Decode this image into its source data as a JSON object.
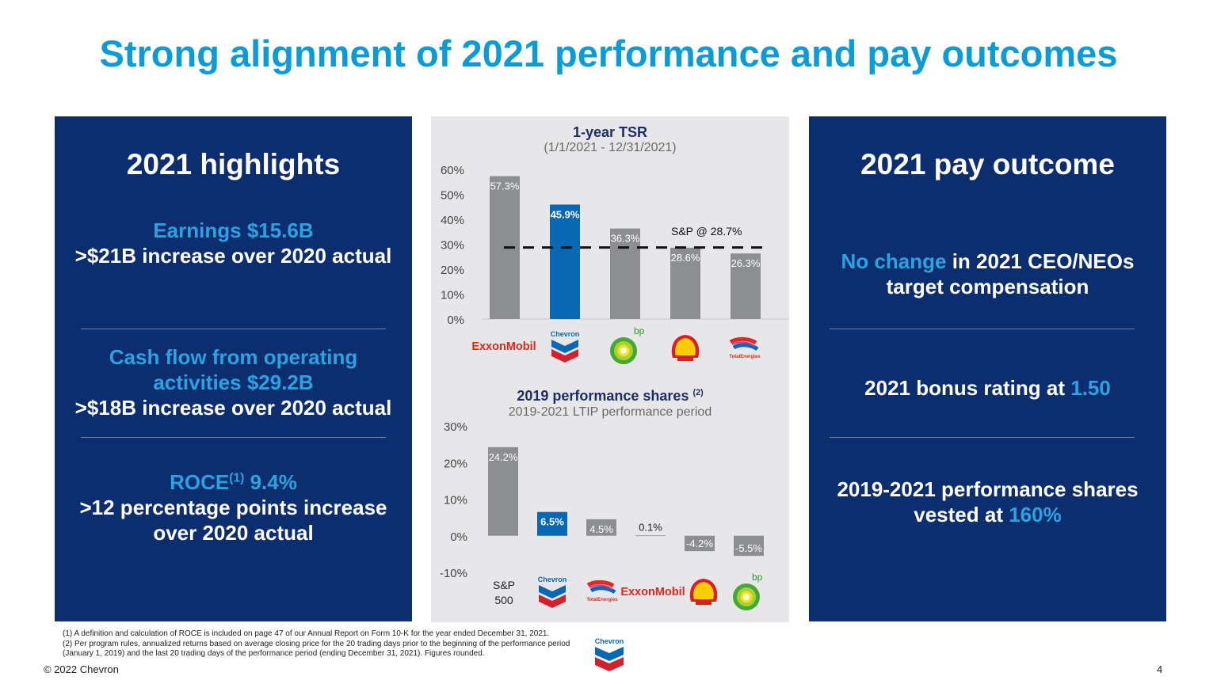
{
  "title": "Strong alignment of 2021 performance and pay outcomes",
  "left_panel": {
    "heading": "2021 highlights",
    "b1_l1": "Earnings $15.6B",
    "b1_l2": ">$21B increase over 2020 actual",
    "b2_l1": "Cash flow from operating",
    "b2_l2": "activities $29.2B",
    "b2_l3": ">$18B increase over 2020 actual",
    "b3_roce": "ROCE",
    "b3_sup": "(1)",
    "b3_val": " 9.4%",
    "b3_l2": ">12 percentage points increase",
    "b3_l3": "over 2020 actual"
  },
  "right_panel": {
    "heading": "2021 pay outcome",
    "b1_hl": "No change",
    "b1_rest": " in 2021 CEO/NEOs",
    "b1_l2": "target compensation",
    "b2_text": "2021 bonus rating at ",
    "b2_hl": "1.50",
    "b3_l1": "2019-2021 performance shares",
    "b3_text": "vested at ",
    "b3_hl": "160%"
  },
  "chart_data": [
    {
      "type": "bar",
      "title": "1-year TSR",
      "subtitle": "(1/1/2021 - 12/31/2021)",
      "categories": [
        "ExxonMobil",
        "Chevron",
        "bp",
        "Shell",
        "TotalEnergies"
      ],
      "values": [
        57.3,
        45.9,
        36.3,
        28.6,
        26.3
      ],
      "labels": [
        "57.3%",
        "45.9%",
        "36.3%",
        "28.6%",
        "26.3%"
      ],
      "highlight": "Chevron",
      "ylim": [
        0,
        60
      ],
      "yticks": [
        "0%",
        "10%",
        "20%",
        "30%",
        "40%",
        "50%",
        "60%"
      ],
      "reference": {
        "label": "S&P @ 28.7%",
        "value": 28.7
      }
    },
    {
      "type": "bar",
      "title": "2019 performance shares",
      "title_sup": "(2)",
      "subtitle": "2019-2021 LTIP performance period",
      "categories": [
        "S&P 500",
        "Chevron",
        "TotalEnergies",
        "ExxonMobil",
        "Shell",
        "bp"
      ],
      "values": [
        24.2,
        6.5,
        4.5,
        0.1,
        -4.2,
        -5.5
      ],
      "labels": [
        "24.2%",
        "6.5%",
        "4.5%",
        "0.1%",
        "-4.2%",
        "-5.5%"
      ],
      "highlight": "Chevron",
      "ylim": [
        -10,
        30
      ],
      "yticks": [
        "-10%",
        "0%",
        "10%",
        "20%",
        "30%"
      ],
      "sp_label_1": "S&P",
      "sp_label_2": "500"
    }
  ],
  "logos": {
    "exxon": "ExxonMobil",
    "chevron": "Chevron",
    "bp": "bp",
    "total": "TotalEnergies"
  },
  "colors": {
    "highlight": "#0868b3",
    "bar": "#8c8e91",
    "panel": "#0c2e6e",
    "title": "#0b9cd7"
  },
  "footnotes": {
    "n1": "(1) A definition and calculation of ROCE is included on page 47 of our Annual Report on Form 10-K for the year ended December 31, 2021.",
    "n2": "(2) Per program rules, annualized returns based on average closing price for the 20 trading days prior to the beginning of the performance period (January 1, 2019) and the last 20 trading days of the performance period (ending December 31, 2021). Figures rounded."
  },
  "copyright": "© 2022 Chevron",
  "page_number": "4"
}
